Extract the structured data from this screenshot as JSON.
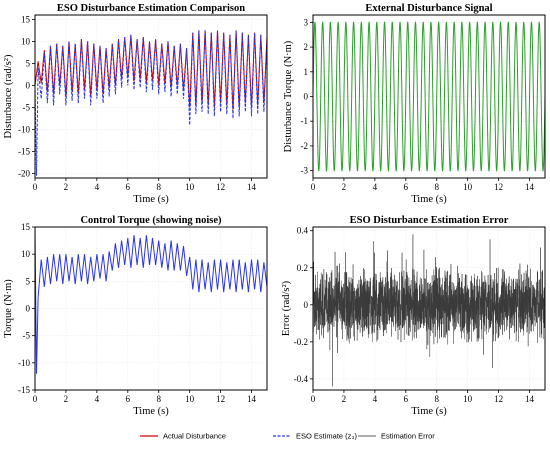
{
  "chart_data": [
    {
      "id": "p1",
      "type": "line",
      "title": "ESO Disturbance Estimation Comparison",
      "xlabel": "Time (s)",
      "ylabel": "Disturbance (rad/s²)",
      "xlim": [
        0,
        15
      ],
      "ylim": [
        -21,
        16
      ],
      "xticks": [
        0,
        2,
        4,
        6,
        8,
        10,
        12,
        14
      ],
      "yticks": [
        -20,
        -15,
        -10,
        -5,
        0,
        5,
        10,
        15
      ],
      "grid": true,
      "series": [
        {
          "name": "Actual Disturbance",
          "color": "#d40000",
          "style": "solid",
          "x": [
            0,
            0.2,
            0.4,
            0.6,
            0.8,
            1,
            1.2,
            1.4,
            1.6,
            1.8,
            2,
            2.2,
            2.4,
            2.6,
            2.8,
            3,
            3.2,
            3.4,
            3.6,
            3.8,
            4,
            4.2,
            4.4,
            4.6,
            4.8,
            5,
            5.2,
            5.4,
            5.6,
            5.8,
            6,
            6.2,
            6.4,
            6.6,
            6.8,
            7,
            7.2,
            7.4,
            7.6,
            7.8,
            8,
            8.2,
            8.4,
            8.6,
            8.8,
            9,
            9.2,
            9.4,
            9.6,
            9.8,
            10,
            10.2,
            10.4,
            10.6,
            10.8,
            11,
            11.2,
            11.4,
            11.6,
            11.8,
            12,
            12.2,
            12.4,
            12.6,
            12.8,
            13,
            13.2,
            13.4,
            13.6,
            13.8,
            14,
            14.2,
            14.4,
            14.6,
            14.8,
            15
          ],
          "y": [
            0,
            5.5,
            0.5,
            8,
            -1.5,
            9,
            -2,
            9.5,
            0,
            9,
            -2.5,
            10,
            -1.5,
            9.5,
            -2,
            10.5,
            -1,
            10,
            -2.5,
            9.5,
            -1,
            9,
            -2,
            8.5,
            -0.5,
            9.5,
            0,
            10.5,
            1.5,
            11,
            2,
            11.5,
            1,
            10.5,
            1.5,
            11,
            0.5,
            10,
            1,
            10.5,
            0,
            9.5,
            0.5,
            10,
            -0.5,
            9,
            0,
            9.5,
            -1,
            8.5,
            -5,
            12,
            -4.5,
            12.5,
            -4,
            12.5,
            -4.5,
            12,
            -5,
            12.5,
            -4,
            12,
            -4.5,
            11.5,
            -5.5,
            12.5,
            -5,
            12,
            -4,
            11.5,
            -5,
            12,
            -4.5,
            11.5,
            -4,
            11
          ]
        },
        {
          "name": "ESO Estimate (z₃)",
          "color": "#2b35e6",
          "style": "dashed",
          "x": [
            0,
            0.1,
            0.2,
            0.4,
            0.6,
            0.8,
            1,
            1.2,
            1.4,
            1.6,
            1.8,
            2,
            2.2,
            2.4,
            2.6,
            2.8,
            3,
            3.2,
            3.4,
            3.6,
            3.8,
            4,
            4.2,
            4.4,
            4.6,
            4.8,
            5,
            5.2,
            5.4,
            5.6,
            5.8,
            6,
            6.2,
            6.4,
            6.6,
            6.8,
            7,
            7.2,
            7.4,
            7.6,
            7.8,
            8,
            8.2,
            8.4,
            8.6,
            8.8,
            9,
            9.2,
            9.4,
            9.6,
            9.8,
            10,
            10.2,
            10.4,
            10.6,
            10.8,
            11,
            11.2,
            11.4,
            11.6,
            11.8,
            12,
            12.2,
            12.4,
            12.6,
            12.8,
            13,
            13.2,
            13.4,
            13.6,
            13.8,
            14,
            14.2,
            14.4,
            14.6,
            14.8,
            15
          ],
          "y": [
            0,
            -20.5,
            4,
            -3,
            7.5,
            -4,
            9,
            -4.5,
            9.5,
            -2,
            9,
            -4.5,
            10,
            -3.5,
            9.5,
            -4,
            10.5,
            -3,
            10,
            -4.5,
            9.5,
            -3,
            9,
            -4,
            8.5,
            -2.5,
            9.5,
            -2,
            10.5,
            -0.5,
            11,
            0,
            11.5,
            -1,
            10.5,
            -0.5,
            11,
            -1.5,
            10,
            -1,
            10.5,
            -2,
            9.5,
            -1.5,
            10,
            -2.5,
            9,
            -2,
            9.5,
            -3,
            8.5,
            -9,
            12,
            -6.5,
            12.5,
            -6,
            12.5,
            -6.5,
            12,
            -7,
            12.5,
            -6,
            12,
            -6.5,
            11.5,
            -7.5,
            12.5,
            -7,
            12,
            -6,
            11.5,
            -7,
            12,
            -6.5,
            11.5,
            -6,
            11
          ]
        }
      ]
    },
    {
      "id": "p2",
      "type": "line",
      "title": "External Disturbance Signal",
      "xlabel": "Time (s)",
      "ylabel": "Disturbance Torque (N·m)",
      "xlim": [
        0,
        15
      ],
      "ylim": [
        -3.3,
        3.3
      ],
      "xticks": [
        0,
        2,
        4,
        6,
        8,
        10,
        12,
        14
      ],
      "yticks": [
        -3,
        -2,
        -1,
        0,
        1,
        2,
        3
      ],
      "grid": true,
      "series": [
        {
          "color": "#2ca02c",
          "function": "3*sin(2*pi*2*t)",
          "amplitude": 3,
          "frequency_hz": 2
        }
      ]
    },
    {
      "id": "p3",
      "type": "line",
      "title": "Control Torque (showing noise)",
      "xlabel": "Time (s)",
      "ylabel": "Torque (N·m)",
      "xlim": [
        0,
        15
      ],
      "ylim": [
        -15,
        15
      ],
      "xticks": [
        0,
        2,
        4,
        6,
        8,
        10,
        12,
        14
      ],
      "yticks": [
        -15,
        -10,
        -5,
        0,
        5,
        10,
        15
      ],
      "grid": true,
      "series": [
        {
          "color": "#2b35e6",
          "x": [
            0,
            0.1,
            0.2,
            0.4,
            0.6,
            0.8,
            1,
            1.2,
            1.4,
            1.6,
            1.8,
            2,
            2.2,
            2.4,
            2.6,
            2.8,
            3,
            3.2,
            3.4,
            3.6,
            3.8,
            4,
            4.2,
            4.4,
            4.6,
            4.8,
            5,
            5.2,
            5.4,
            5.6,
            5.8,
            6,
            6.2,
            6.4,
            6.6,
            6.8,
            7,
            7.2,
            7.4,
            7.6,
            7.8,
            8,
            8.2,
            8.4,
            8.6,
            8.8,
            9,
            9.2,
            9.4,
            9.6,
            9.8,
            10,
            10.2,
            10.4,
            10.6,
            10.8,
            11,
            11.2,
            11.4,
            11.6,
            11.8,
            12,
            12.2,
            12.4,
            12.6,
            12.8,
            13,
            13.2,
            13.4,
            13.6,
            13.8,
            14,
            14.2,
            14.4,
            14.6,
            14.8,
            15
          ],
          "y": [
            15,
            -12,
            2,
            9,
            4,
            9.5,
            4.5,
            10,
            5,
            10,
            4.5,
            10,
            5,
            9.5,
            4.5,
            10,
            5,
            10,
            4.5,
            9.5,
            5,
            10,
            5.5,
            10,
            5,
            10.5,
            7,
            12,
            7.5,
            12.5,
            8,
            13,
            7.5,
            13.5,
            8,
            13,
            7.5,
            13.5,
            8,
            13,
            8,
            12.5,
            7.5,
            12,
            7,
            12.5,
            7,
            12,
            7,
            11.5,
            6,
            9.5,
            3.5,
            9,
            3,
            9,
            3.5,
            8.5,
            3,
            9,
            3.5,
            9,
            3,
            8.5,
            3.5,
            9,
            3,
            9,
            3.5,
            8.5,
            3,
            9,
            3.5,
            9,
            3,
            8.5,
            4
          ]
        }
      ]
    },
    {
      "id": "p4",
      "type": "line",
      "title": "ESO Disturbance Estimation Error",
      "xlabel": "Time (s)",
      "ylabel": "Error (rad/s²)",
      "xlim": [
        0,
        15
      ],
      "ylim": [
        -0.46,
        0.42
      ],
      "xticks": [
        0,
        2,
        4,
        6,
        8,
        10,
        12,
        14
      ],
      "yticks": [
        -0.4,
        -0.2,
        0.0,
        0.2,
        0.4
      ],
      "grid": true,
      "series": [
        {
          "color": "#3a3a3a",
          "pattern": "high-frequency noise",
          "typical_range": [
            -0.2,
            0.2
          ],
          "max": 0.38,
          "min": -0.44
        }
      ]
    }
  ],
  "legend": [
    {
      "label": "Actual Disturbance",
      "color": "#d40000",
      "style": "solid"
    },
    {
      "label": "ESO Estimate (z₃)",
      "color": "#2b35e6",
      "style": "dashed"
    },
    {
      "label": "Estimation Error",
      "color": "#7f7f7f",
      "style": "solid"
    }
  ]
}
